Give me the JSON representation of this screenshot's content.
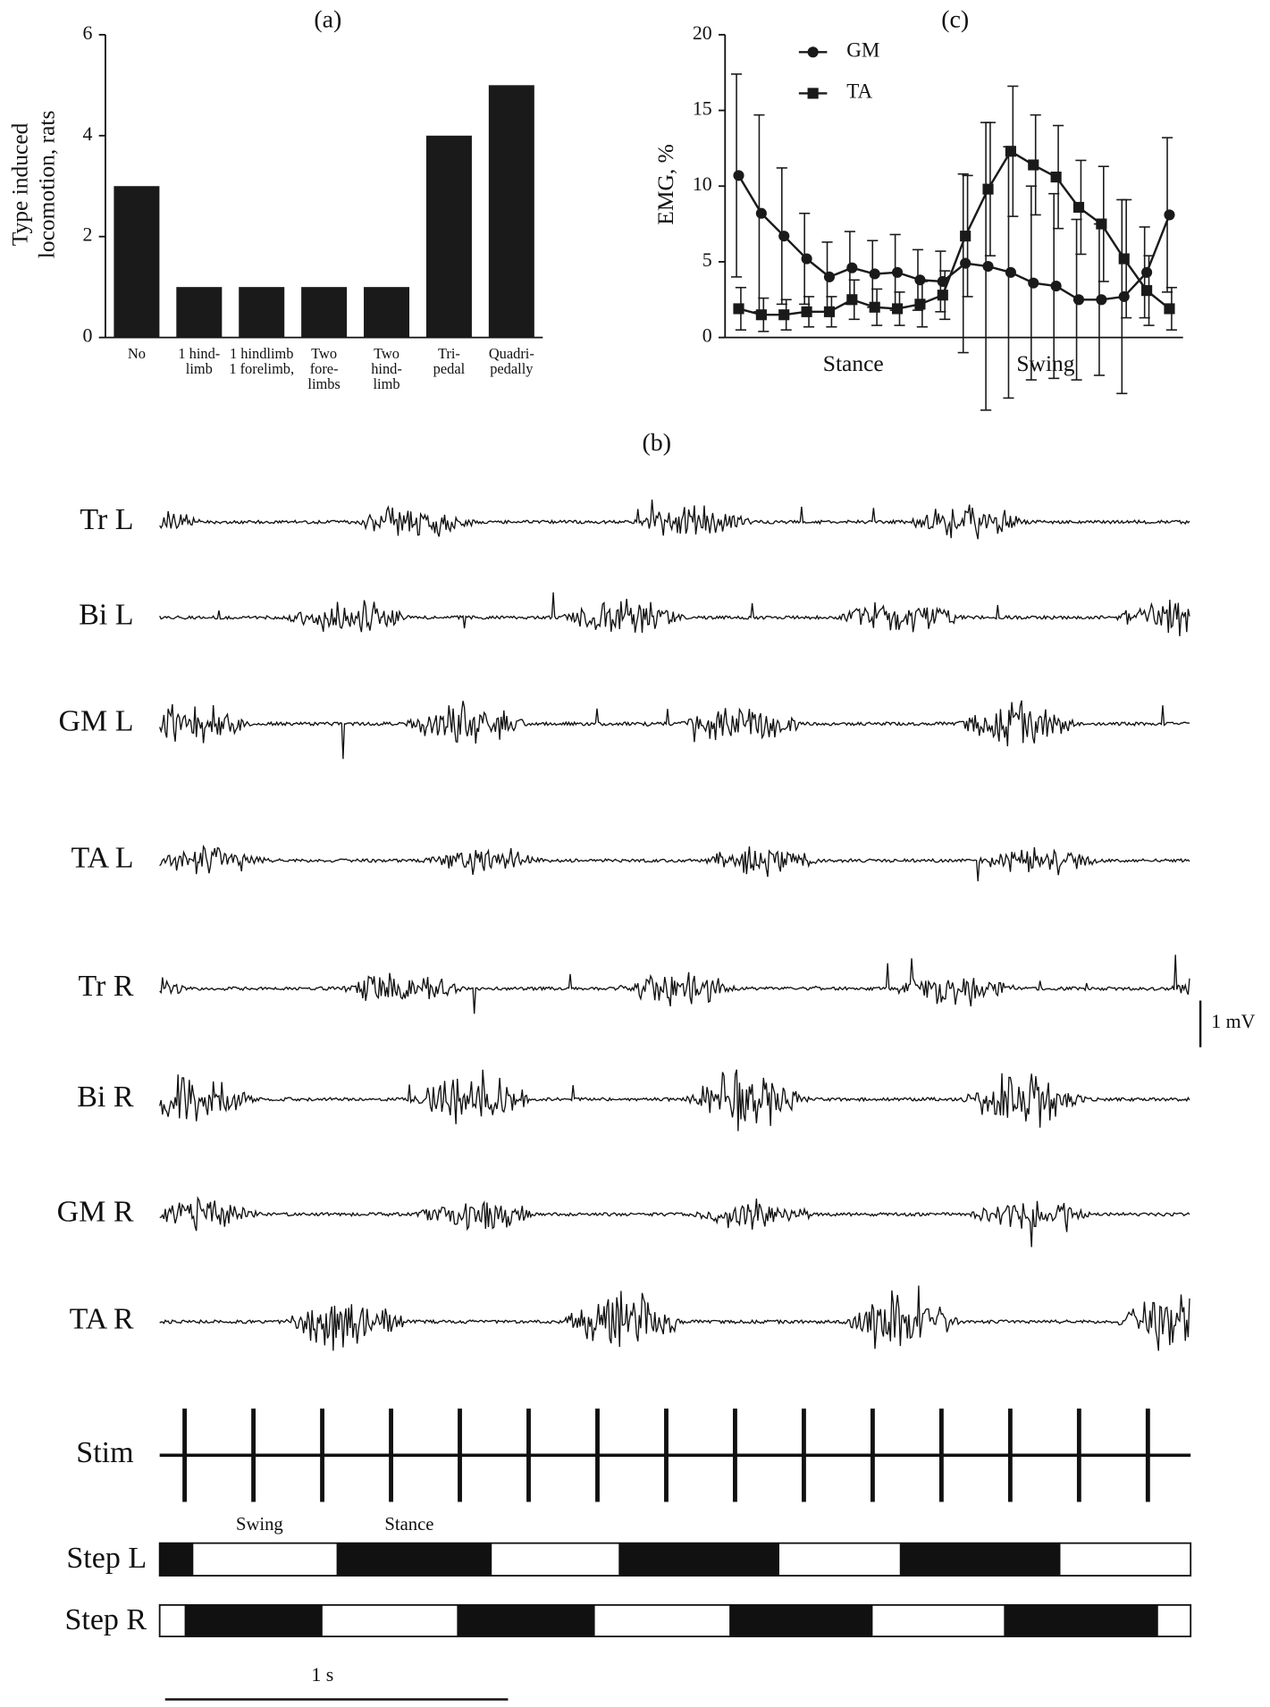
{
  "chart_data": [
    {
      "type": "bar",
      "title": "(a)",
      "ylabel": [
        "Type induced",
        "locomotion, rats"
      ],
      "categories": [
        [
          "No"
        ],
        [
          "1 hind-",
          "limb"
        ],
        [
          "1 hindlimb",
          "1 forelimb,"
        ],
        [
          "Two",
          "fore-",
          "limbs"
        ],
        [
          "Two",
          "hind-",
          "limb"
        ],
        [
          "Tri-",
          "pedal"
        ],
        [
          "Quadri-",
          "pedally"
        ]
      ],
      "values": [
        3,
        1,
        1,
        1,
        1,
        4,
        5
      ],
      "color": "#1a1a1a",
      "ylim": [
        0,
        6
      ],
      "yticks": [
        0,
        2,
        4,
        6
      ]
    },
    {
      "type": "line",
      "title": "(c)",
      "ylabel": "EMG, %",
      "x_labels": [
        "Stance",
        "Swing"
      ],
      "x": [
        1,
        2,
        3,
        4,
        5,
        6,
        7,
        8,
        9,
        10,
        11,
        12,
        13,
        14,
        15,
        16,
        17,
        18,
        19,
        20
      ],
      "xlim": [
        0.4,
        20.6
      ],
      "ylim": [
        0,
        20
      ],
      "yticks": [
        0,
        5,
        10,
        15,
        20
      ],
      "series": [
        {
          "name": "GM",
          "color": "#1a1a1a",
          "marker": "circle",
          "values": [
            10.7,
            8.2,
            6.7,
            5.2,
            4.0,
            4.6,
            4.2,
            4.3,
            3.8,
            3.7,
            4.9,
            4.7,
            4.3,
            3.6,
            3.4,
            2.5,
            2.5,
            2.7,
            4.3,
            8.1
          ],
          "errors": [
            6.7,
            6.5,
            4.5,
            3.0,
            2.3,
            2.4,
            2.2,
            2.5,
            2.0,
            2.0,
            5.9,
            9.5,
            8.3,
            6.4,
            6.1,
            5.3,
            5.0,
            6.4,
            3.0,
            5.1
          ]
        },
        {
          "name": "TA",
          "color": "#1a1a1a",
          "marker": "square",
          "values": [
            1.9,
            1.5,
            1.5,
            1.7,
            1.7,
            2.5,
            2.0,
            1.9,
            2.2,
            2.8,
            6.7,
            9.8,
            12.3,
            11.4,
            10.6,
            8.6,
            7.5,
            5.2,
            3.1,
            1.9
          ],
          "errors": [
            1.4,
            1.1,
            1.0,
            1.0,
            1.0,
            1.3,
            1.2,
            1.1,
            1.5,
            1.6,
            4.0,
            4.4,
            4.3,
            3.3,
            3.4,
            3.1,
            3.8,
            3.9,
            2.3,
            1.4
          ]
        }
      ]
    },
    {
      "type": "traces",
      "title": "(b)",
      "channels": [
        "Tr L",
        "Bi L",
        "GM L",
        "TA L",
        "Tr R",
        "Bi R",
        "GM R",
        "TA R"
      ],
      "stim": "Stim",
      "steps": [
        "Step L",
        "Step R"
      ],
      "phase_labels": [
        "Swing",
        "Stance"
      ],
      "time_scale": "1 s",
      "amp_scale": "1 mV"
    }
  ]
}
